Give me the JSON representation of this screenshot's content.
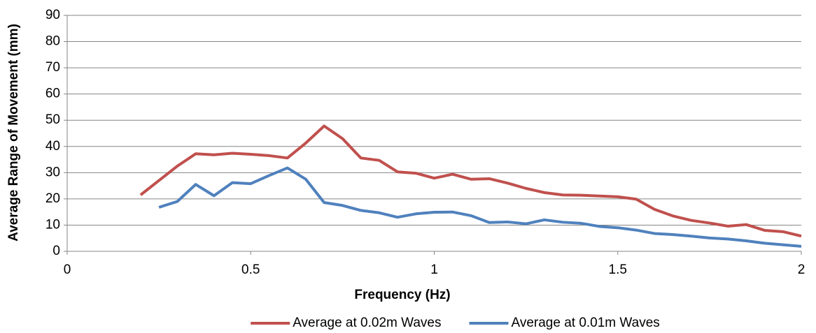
{
  "chart_data": {
    "type": "line",
    "x_label": "Frequency (Hz)",
    "y_label": "Average Range of Movement (mm)",
    "xlim": [
      0,
      2
    ],
    "xticks": [
      0,
      0.5,
      1,
      1.5,
      2
    ],
    "ylim": [
      0,
      90
    ],
    "yticks": [
      0,
      10,
      20,
      30,
      40,
      50,
      60,
      70,
      80,
      90
    ],
    "grid": true,
    "legend": "bottom",
    "series": [
      {
        "name": "Average at 0.02m Waves",
        "color": "#c0504d",
        "x": [
          0.2,
          0.25,
          0.3,
          0.35,
          0.4,
          0.45,
          0.5,
          0.55,
          0.6,
          0.65,
          0.7,
          0.75,
          0.8,
          0.85,
          0.9,
          0.95,
          1.0,
          1.05,
          1.1,
          1.15,
          1.2,
          1.25,
          1.3,
          1.35,
          1.4,
          1.45,
          1.5,
          1.55,
          1.6,
          1.65,
          1.7,
          1.75,
          1.8,
          1.85,
          1.9,
          1.95,
          2.0
        ],
        "values": [
          21.5,
          27,
          32.5,
          37.2,
          36.8,
          37.4,
          37,
          36.5,
          35.6,
          41.3,
          47.8,
          43,
          35.6,
          34.7,
          30.3,
          29.8,
          27.9,
          29.4,
          27.5,
          27.7,
          26,
          24,
          22.4,
          21.5,
          21.4,
          21.1,
          20.8,
          19.9,
          16,
          13.5,
          11.8,
          10.8,
          9.6,
          10.2,
          8,
          7.5,
          5.8
        ]
      },
      {
        "name": "Average at 0.01m Waves",
        "color": "#4f81bd",
        "x": [
          0.25,
          0.3,
          0.35,
          0.4,
          0.45,
          0.5,
          0.55,
          0.6,
          0.65,
          0.7,
          0.75,
          0.8,
          0.85,
          0.9,
          0.95,
          1.0,
          1.05,
          1.1,
          1.15,
          1.2,
          1.25,
          1.3,
          1.35,
          1.4,
          1.45,
          1.5,
          1.55,
          1.6,
          1.65,
          1.7,
          1.75,
          1.8,
          1.85,
          1.9,
          1.95,
          2.0
        ],
        "values": [
          16.8,
          19,
          25.5,
          21.2,
          26.2,
          25.8,
          28.9,
          31.8,
          27.5,
          18.6,
          17.5,
          15.6,
          14.7,
          13,
          14.3,
          14.9,
          15,
          13.6,
          11,
          11.2,
          10.5,
          12,
          11.1,
          10.7,
          9.5,
          9,
          8.1,
          6.8,
          6.4,
          5.8,
          5.1,
          4.7,
          4,
          3.1,
          2.5,
          1.9
        ]
      }
    ]
  }
}
